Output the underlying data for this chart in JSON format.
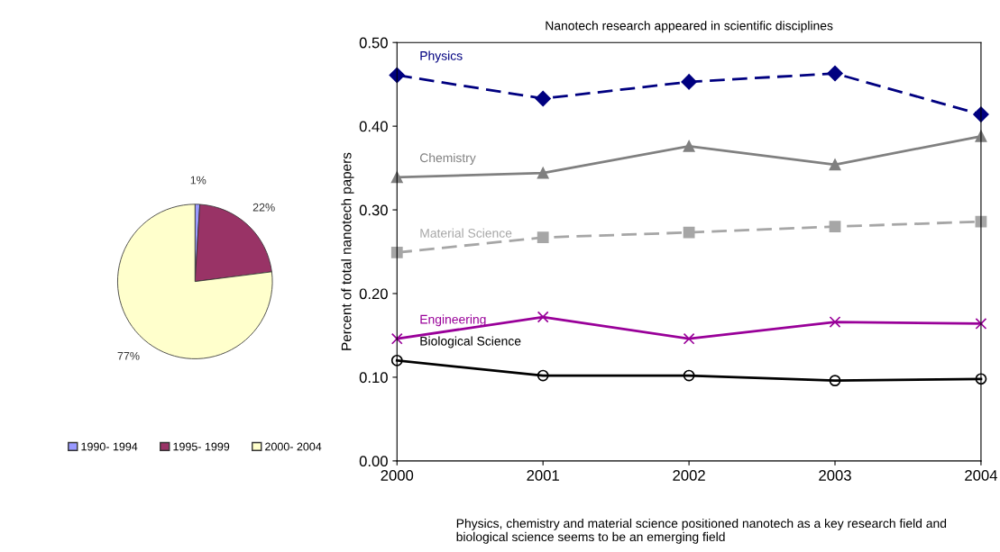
{
  "chart_data": [
    {
      "type": "pie",
      "categories": [
        "1990- 1994",
        "1995- 1999",
        "2000- 2004"
      ],
      "values": [
        1,
        22,
        77
      ],
      "colors": [
        "#9999ff",
        "#993366",
        "#ffffcc"
      ],
      "value_labels": [
        "1%",
        "22%",
        "77%"
      ],
      "legend": "bottom"
    },
    {
      "type": "line",
      "title": "Nanotech research appeared in scientific disciplines",
      "ylabel": "Percent of total nanotech papers",
      "x": [
        2000,
        2001,
        2002,
        2003,
        2004
      ],
      "xlim": [
        2000,
        2004
      ],
      "xticks": [
        2000,
        2001,
        2002,
        2003,
        2004
      ],
      "ylim": [
        0,
        0.5
      ],
      "yticks": [
        {
          "value": 0,
          "label": "0.00"
        },
        {
          "value": 0.1,
          "label": "0.10"
        },
        {
          "value": 0.2,
          "label": "0.20"
        },
        {
          "value": 0.3,
          "label": "0.30"
        },
        {
          "value": 0.4,
          "label": "0.40"
        },
        {
          "value": 0.5,
          "label": "0.50"
        }
      ],
      "grid": false,
      "legend": false,
      "series": [
        {
          "name": "Physics",
          "color": "#000080",
          "marker": "diamond",
          "line_style": "dashed",
          "values": [
            0.461,
            0.433,
            0.453,
            0.463,
            0.414
          ]
        },
        {
          "name": "Chemistry",
          "color": "#808080",
          "marker": "triangle",
          "line_style": "solid",
          "values": [
            0.339,
            0.344,
            0.376,
            0.354,
            0.388
          ]
        },
        {
          "name": "Material Science",
          "color": "#a6a6a6",
          "marker": "square",
          "line_style": "dashed",
          "values": [
            0.249,
            0.267,
            0.273,
            0.28,
            0.286
          ]
        },
        {
          "name": "Engineering",
          "color": "#990099",
          "marker": "cross",
          "line_style": "solid",
          "values": [
            0.146,
            0.172,
            0.146,
            0.166,
            0.164
          ]
        },
        {
          "name": "Biological Science",
          "color": "#000000",
          "marker": "circle",
          "line_style": "solid",
          "values": [
            0.12,
            0.102,
            0.102,
            0.096,
            0.098
          ]
        }
      ],
      "annotations": [
        "Physics, chemistry and material science positioned nanotech as a key research field and biological science seems to be an emerging field"
      ]
    }
  ]
}
